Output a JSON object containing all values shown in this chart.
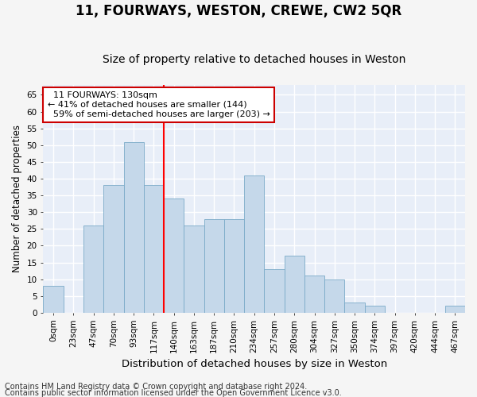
{
  "title": "11, FOURWAYS, WESTON, CREWE, CW2 5QR",
  "subtitle": "Size of property relative to detached houses in Weston",
  "xlabel": "Distribution of detached houses by size in Weston",
  "ylabel": "Number of detached properties",
  "bar_color": "#c5d8ea",
  "bar_edge_color": "#7aaac8",
  "categories": [
    "0sqm",
    "23sqm",
    "47sqm",
    "70sqm",
    "93sqm",
    "117sqm",
    "140sqm",
    "163sqm",
    "187sqm",
    "210sqm",
    "234sqm",
    "257sqm",
    "280sqm",
    "304sqm",
    "327sqm",
    "350sqm",
    "374sqm",
    "397sqm",
    "420sqm",
    "444sqm",
    "467sqm"
  ],
  "values": [
    8,
    0,
    26,
    38,
    51,
    38,
    34,
    26,
    28,
    28,
    41,
    13,
    17,
    11,
    10,
    3,
    2,
    0,
    0,
    0,
    2
  ],
  "ylim": [
    0,
    68
  ],
  "yticks": [
    0,
    5,
    10,
    15,
    20,
    25,
    30,
    35,
    40,
    45,
    50,
    55,
    60,
    65
  ],
  "vline_x": 5.5,
  "annotation_text": "  11 FOURWAYS: 130sqm\n← 41% of detached houses are smaller (144)\n  59% of semi-detached houses are larger (203) →",
  "annotation_box_color": "#ffffff",
  "annotation_box_edge_color": "#cc0000",
  "footer1": "Contains HM Land Registry data © Crown copyright and database right 2024.",
  "footer2": "Contains public sector information licensed under the Open Government Licence v3.0.",
  "plot_bg_color": "#e8eef8",
  "fig_bg_color": "#f5f5f5",
  "grid_color": "#ffffff",
  "title_fontsize": 12,
  "subtitle_fontsize": 10,
  "xlabel_fontsize": 9.5,
  "ylabel_fontsize": 8.5,
  "tick_fontsize": 7.5,
  "annotation_fontsize": 8,
  "footer_fontsize": 7
}
